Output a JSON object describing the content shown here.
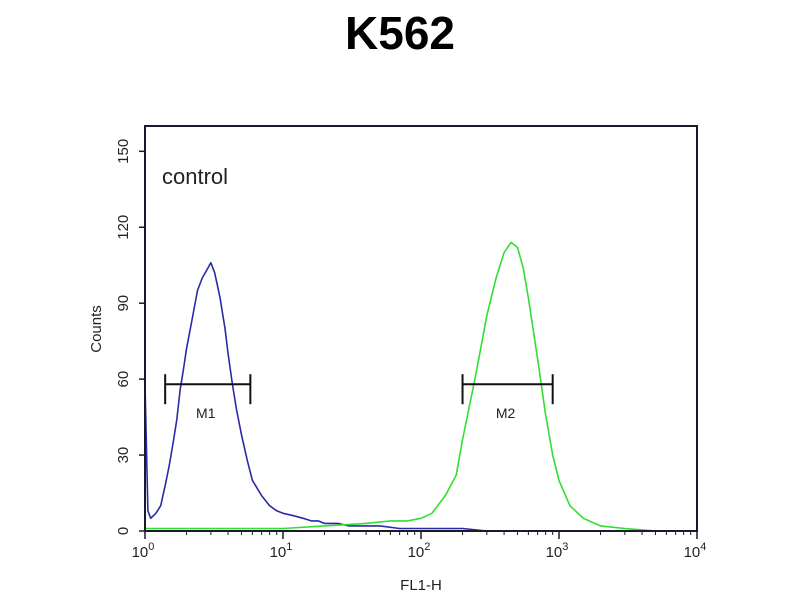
{
  "chart_data": {
    "type": "line",
    "title": "K562",
    "xlabel": "FL1-H",
    "ylabel": "Counts",
    "x_scale": "log",
    "xlim": [
      1,
      10000
    ],
    "ylim": [
      0,
      160
    ],
    "grid": false,
    "x_ticks": [
      {
        "value": 1,
        "base": "10",
        "exp": "0"
      },
      {
        "value": 10,
        "base": "10",
        "exp": "1"
      },
      {
        "value": 100,
        "base": "10",
        "exp": "2"
      },
      {
        "value": 1000,
        "base": "10",
        "exp": "3"
      },
      {
        "value": 10000,
        "base": "10",
        "exp": "4"
      }
    ],
    "y_ticks": [
      0,
      30,
      60,
      90,
      120,
      150
    ],
    "annotation": "control",
    "series": [
      {
        "color": "#2a2aa8",
        "x": [
          1.0,
          1.05,
          1.1,
          1.2,
          1.3,
          1.4,
          1.5,
          1.6,
          1.7,
          1.8,
          1.9,
          2.0,
          2.2,
          2.4,
          2.6,
          2.8,
          3.0,
          3.2,
          3.5,
          3.8,
          4.0,
          4.3,
          4.6,
          5.0,
          5.5,
          6.0,
          7.0,
          8.0,
          9.0,
          10,
          12,
          14,
          16,
          18,
          20,
          25,
          30,
          40,
          50,
          70,
          100,
          150,
          200,
          300,
          500,
          1000,
          2000,
          5000,
          10000
        ],
        "y": [
          58,
          8,
          5,
          7,
          10,
          18,
          26,
          35,
          44,
          56,
          64,
          72,
          84,
          95,
          100,
          103,
          106,
          102,
          92,
          80,
          70,
          58,
          48,
          38,
          28,
          20,
          14,
          10,
          8,
          7,
          6,
          5,
          4,
          4,
          3,
          3,
          2,
          2,
          2,
          1,
          1,
          1,
          1,
          0,
          0,
          0,
          0,
          0,
          0
        ]
      },
      {
        "color": "#33dd33",
        "x": [
          1.0,
          2,
          5,
          10,
          20,
          40,
          60,
          80,
          100,
          120,
          150,
          180,
          200,
          250,
          300,
          350,
          400,
          450,
          500,
          550,
          600,
          700,
          800,
          900,
          1000,
          1200,
          1500,
          2000,
          3000,
          5000,
          10000
        ],
        "y": [
          1,
          1,
          1,
          1,
          2,
          3,
          4,
          4,
          5,
          7,
          14,
          22,
          36,
          62,
          85,
          100,
          110,
          114,
          112,
          104,
          92,
          68,
          46,
          30,
          20,
          10,
          5,
          2,
          1,
          0,
          0
        ]
      }
    ],
    "markers": [
      {
        "label": "M1",
        "x_start": 1.4,
        "x_end": 5.8,
        "y": 58
      },
      {
        "label": "M2",
        "x_start": 200,
        "x_end": 900,
        "y": 58
      }
    ]
  }
}
